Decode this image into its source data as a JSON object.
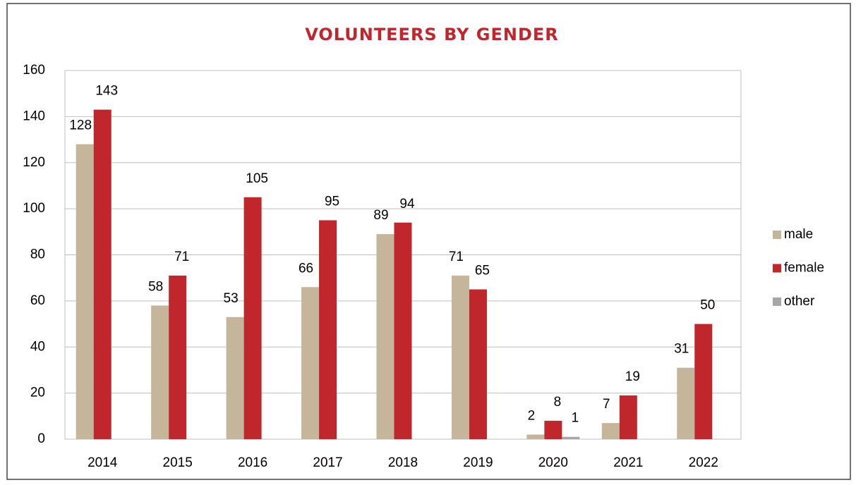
{
  "chart_data": {
    "type": "bar",
    "title": "VOLUNTEERS BY GENDER",
    "categories": [
      "2014",
      "2015",
      "2016",
      "2017",
      "2018",
      "2019",
      "2020",
      "2021",
      "2022"
    ],
    "series": [
      {
        "name": "male",
        "color": "#c4b59b",
        "values": [
          128,
          58,
          53,
          66,
          89,
          71,
          2,
          7,
          31
        ]
      },
      {
        "name": "female",
        "color": "#c0272d",
        "values": [
          143,
          71,
          105,
          95,
          94,
          65,
          8,
          19,
          50
        ]
      },
      {
        "name": "other",
        "color": "#a6a6a6",
        "values": [
          null,
          null,
          null,
          null,
          null,
          null,
          1,
          null,
          null
        ]
      }
    ],
    "ylim": [
      0,
      160
    ],
    "yticks": [
      0,
      20,
      40,
      60,
      80,
      100,
      120,
      140,
      160
    ],
    "grid": true,
    "legend": "right"
  }
}
